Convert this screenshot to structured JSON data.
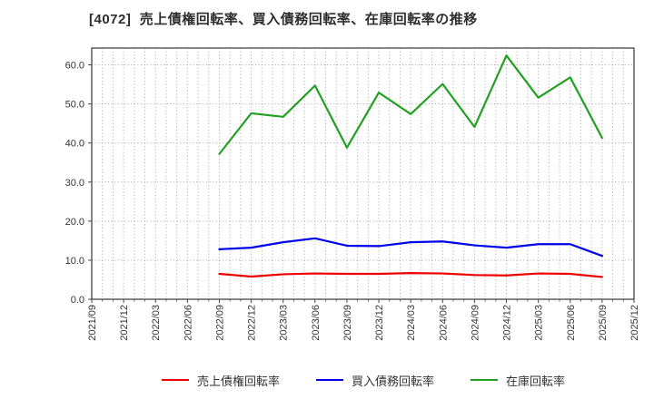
{
  "page": {
    "background": "#ffffff"
  },
  "chart_data": {
    "type": "line",
    "title": "[4072]  売上債権回転率、買入債務回転率、在庫回転率の推移",
    "categories": [
      "2021/09",
      "2021/12",
      "2022/03",
      "2022/06",
      "2022/09",
      "2022/12",
      "2023/03",
      "2023/06",
      "2023/09",
      "2023/12",
      "2024/03",
      "2024/06",
      "2024/09",
      "2024/12",
      "2025/03",
      "2025/06",
      "2025/09",
      "2025/12"
    ],
    "start_index": 4,
    "series": [
      {
        "name": "売上債権回転率",
        "color": "#ee0000",
        "values": [
          6.5,
          5.8,
          6.4,
          6.6,
          6.5,
          6.5,
          6.7,
          6.6,
          6.2,
          6.1,
          6.6,
          6.5,
          5.7
        ]
      },
      {
        "name": "買入債務回転率",
        "color": "#0000ee",
        "values": [
          12.8,
          13.2,
          14.6,
          15.6,
          13.7,
          13.6,
          14.6,
          14.8,
          13.8,
          13.2,
          14.1,
          14.1,
          11.1
        ]
      },
      {
        "name": "在庫回転率",
        "color": "#22a022",
        "values": [
          37.2,
          47.6,
          46.7,
          54.7,
          38.8,
          52.9,
          47.4,
          55.1,
          44.1,
          62.4,
          51.6,
          56.8,
          41.3
        ]
      }
    ],
    "ylim": [
      0,
      64.3
    ],
    "yticks": [
      0,
      10,
      20,
      30,
      40,
      50,
      60
    ],
    "ytick_labels": [
      "0.0",
      "10.0",
      "20.0",
      "30.0",
      "40.0",
      "50.0",
      "60.0"
    ],
    "grid": "dotted-monthly-vertical-and-major-horizontal",
    "legend_position": "bottom",
    "axis_color": "#444444",
    "grid_color": "#a5a5a5",
    "text_color": "#333333"
  }
}
